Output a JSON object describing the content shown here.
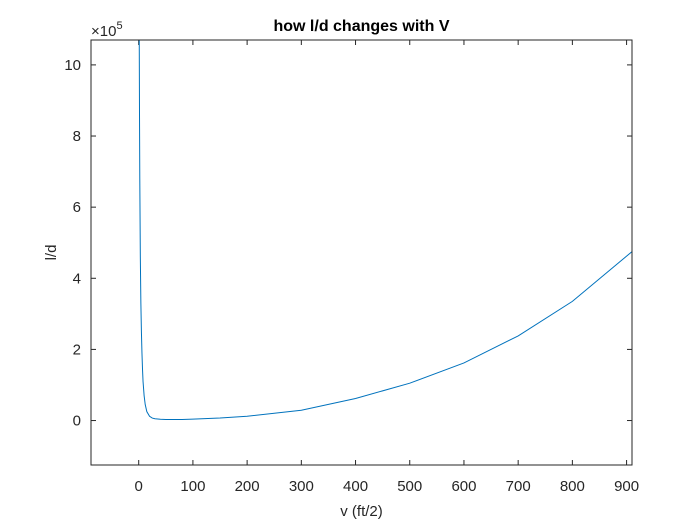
{
  "chart_data": {
    "type": "line",
    "title": "how l/d changes with V",
    "xlabel": "v (ft/2)",
    "ylabel": "l/d",
    "xlim": [
      -88,
      910
    ],
    "ylim": [
      -1.25,
      10.7
    ],
    "y_multiplier": "×10",
    "y_exponent": "5",
    "xticks": [
      0,
      100,
      200,
      300,
      400,
      500,
      600,
      700,
      800,
      900
    ],
    "yticks": [
      0,
      2,
      4,
      6,
      8,
      10
    ],
    "grid": false,
    "line_color": "#0072BD",
    "series": [
      {
        "x": [
          1,
          1.5,
          2,
          3,
          4,
          5,
          6,
          7,
          8,
          10,
          12,
          15,
          20,
          25,
          30,
          40,
          50,
          60,
          80,
          100,
          150,
          200,
          300,
          400,
          500,
          600,
          700,
          800,
          910
        ],
        "y": [
          10.7,
          8.5,
          6.8,
          4.6,
          3.3,
          2.5,
          1.9,
          1.45,
          1.1,
          0.7,
          0.45,
          0.25,
          0.12,
          0.07,
          0.05,
          0.035,
          0.03,
          0.028,
          0.03,
          0.04,
          0.07,
          0.12,
          0.29,
          0.62,
          1.05,
          1.62,
          2.38,
          3.35,
          4.75
        ]
      }
    ]
  }
}
